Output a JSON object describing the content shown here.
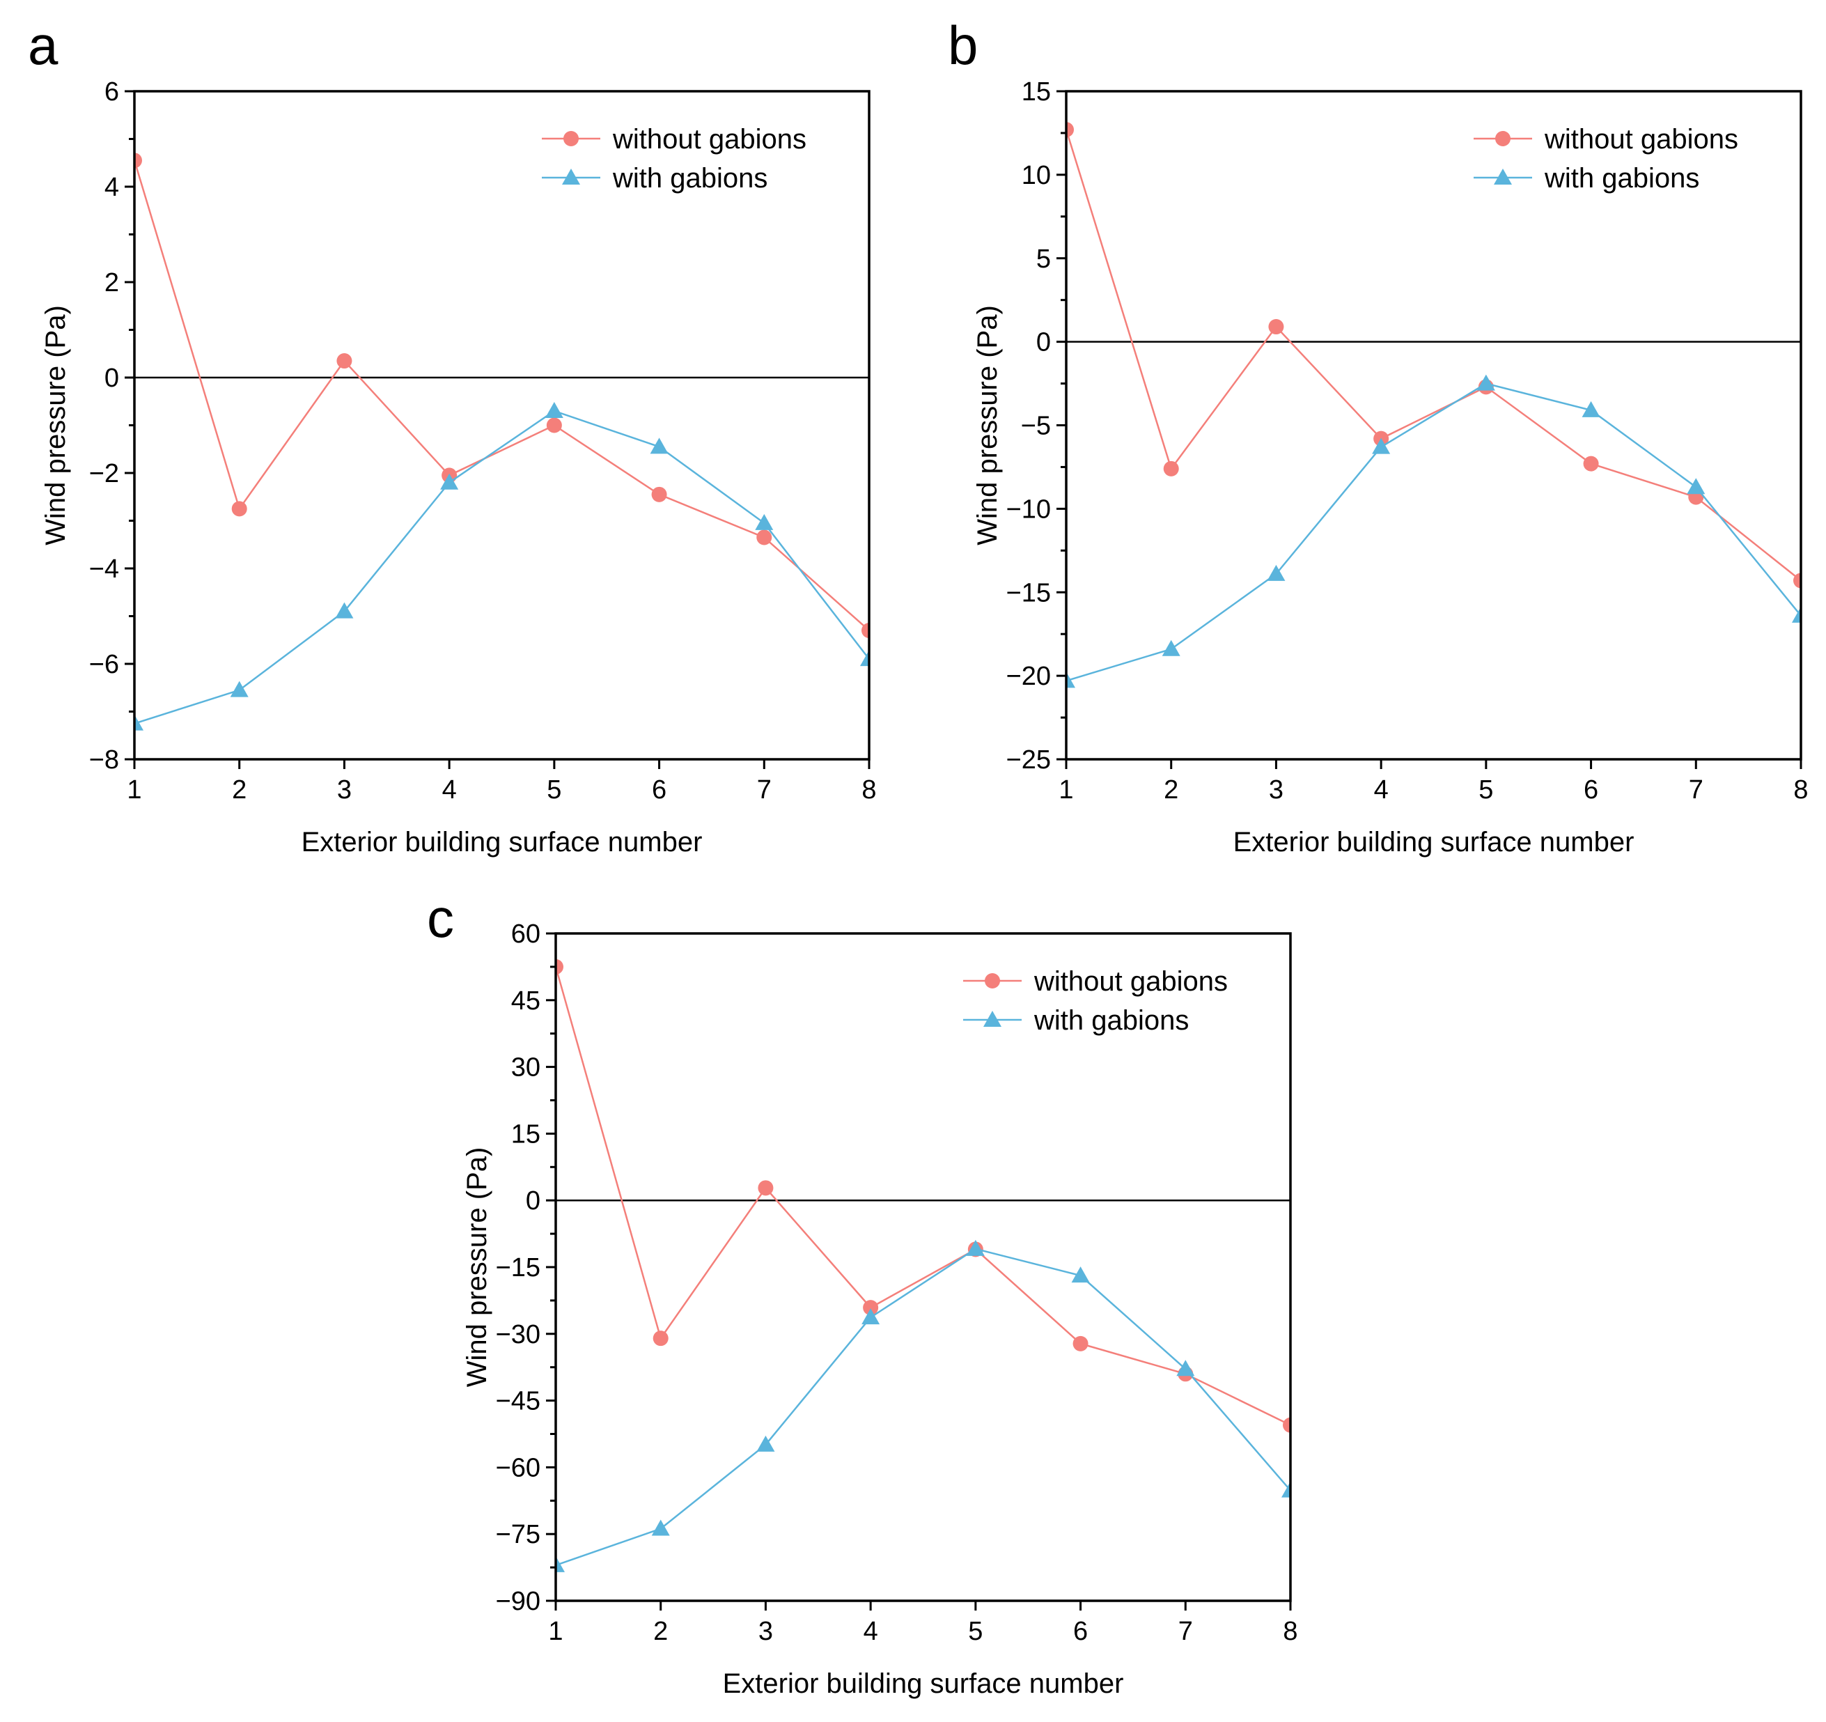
{
  "colors": {
    "without": "#f47f7a",
    "with": "#5ab4dc",
    "axis": "#000000"
  },
  "chart_data": [
    {
      "panel": "a",
      "type": "line",
      "x": [
        1,
        2,
        3,
        4,
        5,
        6,
        7,
        8
      ],
      "xticks": [
        "1",
        "2",
        "3",
        "4",
        "5",
        "6",
        "7",
        "8"
      ],
      "xlim": [
        1,
        8
      ],
      "ylim": [
        -8,
        6
      ],
      "yticks": [
        6,
        4,
        2,
        0,
        -2,
        -4,
        -6,
        -8
      ],
      "ytick_labels": [
        "6",
        "4",
        "2",
        "0",
        "−2",
        "−4",
        "−6",
        "−8"
      ],
      "xlabel": "Exterior building surface number",
      "ylabel": "Wind pressure (Pa)",
      "zero_line": true,
      "legend_position": "top-right",
      "series": [
        {
          "name": "without gabions",
          "marker": "circle",
          "color": "#f47f7a",
          "values": [
            4.55,
            -2.75,
            0.35,
            -2.05,
            -1.0,
            -2.45,
            -3.35,
            -5.3
          ]
        },
        {
          "name": "with gabions",
          "marker": "triangle",
          "color": "#5ab4dc",
          "values": [
            -7.25,
            -6.55,
            -4.9,
            -2.2,
            -0.7,
            -1.45,
            -3.05,
            -5.9
          ]
        }
      ]
    },
    {
      "panel": "b",
      "type": "line",
      "x": [
        1,
        2,
        3,
        4,
        5,
        6,
        7,
        8
      ],
      "xticks": [
        "1",
        "2",
        "3",
        "4",
        "5",
        "6",
        "7",
        "8"
      ],
      "xlim": [
        1,
        8
      ],
      "ylim": [
        -25,
        15
      ],
      "yticks": [
        15,
        10,
        5,
        0,
        -5,
        -10,
        -15,
        -20,
        -25
      ],
      "ytick_labels": [
        "15",
        "10",
        "5",
        "0",
        "−5",
        "−10",
        "−15",
        "−20",
        "−25"
      ],
      "xlabel": "Exterior building surface number",
      "ylabel": "Wind pressure (Pa)",
      "zero_line": true,
      "legend_position": "top-right",
      "series": [
        {
          "name": "without gabions",
          "marker": "circle",
          "color": "#f47f7a",
          "values": [
            12.7,
            -7.6,
            0.9,
            -5.8,
            -2.7,
            -7.3,
            -9.3,
            -14.3
          ]
        },
        {
          "name": "with gabions",
          "marker": "triangle",
          "color": "#5ab4dc",
          "values": [
            -20.3,
            -18.4,
            -13.9,
            -6.3,
            -2.5,
            -4.1,
            -8.7,
            -16.4
          ]
        }
      ]
    },
    {
      "panel": "c",
      "type": "line",
      "x": [
        1,
        2,
        3,
        4,
        5,
        6,
        7,
        8
      ],
      "xticks": [
        "1",
        "2",
        "3",
        "4",
        "5",
        "6",
        "7",
        "8"
      ],
      "xlim": [
        1,
        8
      ],
      "ylim": [
        -90,
        60
      ],
      "yticks": [
        60,
        45,
        30,
        15,
        0,
        -15,
        -30,
        -45,
        -60,
        -75,
        -90
      ],
      "ytick_labels": [
        "60",
        "45",
        "30",
        "15",
        "0",
        "−15",
        "−30",
        "−45",
        "−60",
        "−75",
        "−90"
      ],
      "xlabel": "Exterior building surface number",
      "ylabel": "Wind pressure (Pa)",
      "zero_line": true,
      "legend_position": "top-right",
      "series": [
        {
          "name": "without gabions",
          "marker": "circle",
          "color": "#f47f7a",
          "values": [
            52.5,
            -31.0,
            2.8,
            -24.1,
            -11.0,
            -32.2,
            -39.0,
            -50.5
          ]
        },
        {
          "name": "with gabions",
          "marker": "triangle",
          "color": "#5ab4dc",
          "values": [
            -82.0,
            -73.8,
            -54.9,
            -26.3,
            -10.9,
            -16.9,
            -37.9,
            -65.2
          ]
        }
      ]
    }
  ]
}
